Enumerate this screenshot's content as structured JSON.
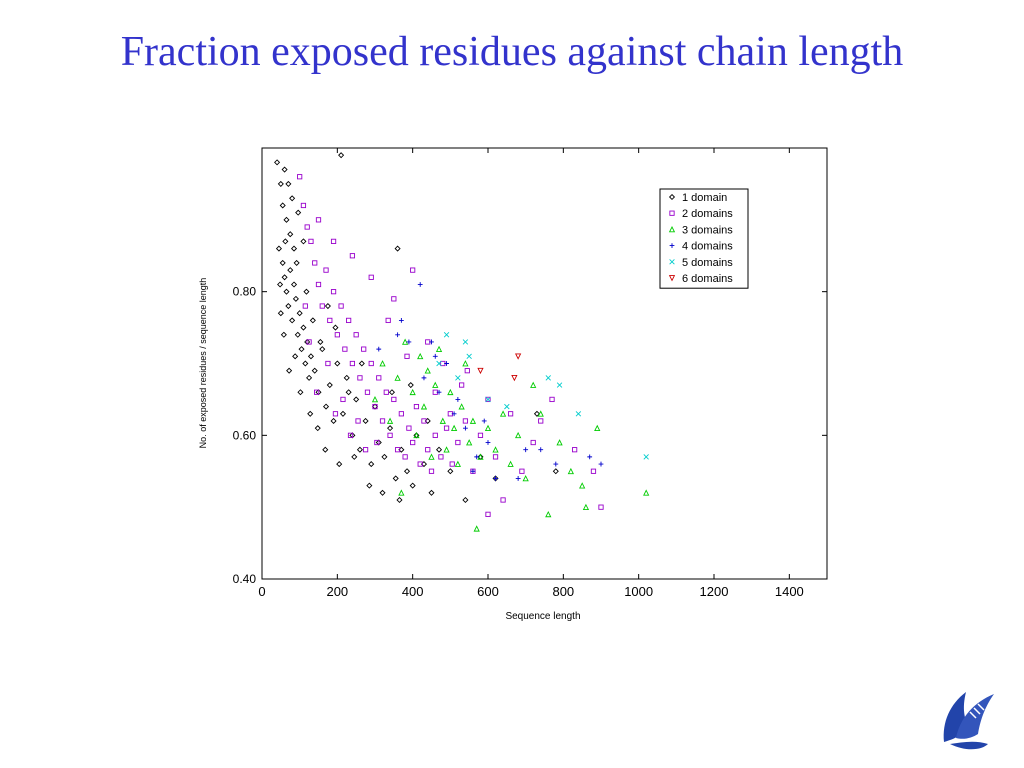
{
  "slide": {
    "title": "Fraction exposed residues against chain length"
  },
  "chart_data": {
    "type": "scatter",
    "xlabel": "Sequence length",
    "ylabel": "No. of exposed residues / sequence length",
    "xlim": [
      0,
      1500
    ],
    "ylim": [
      0.4,
      1.0
    ],
    "xticks": [
      0,
      200,
      400,
      600,
      800,
      1000,
      1200,
      1400
    ],
    "xtick_labels": [
      "0",
      "200",
      "400",
      "600",
      "800",
      "1000",
      "1200",
      "1400"
    ],
    "yticks": [
      0.4,
      0.6,
      0.8
    ],
    "ytick_labels": [
      "0.40",
      "0.60",
      "0.80"
    ],
    "legend_position": "top-right",
    "series": [
      {
        "name": "1 domain",
        "marker": "diamond",
        "color": "#000000",
        "points": [
          [
            40,
            0.98
          ],
          [
            50,
            0.95
          ],
          [
            55,
            0.92
          ],
          [
            60,
            0.97
          ],
          [
            65,
            0.9
          ],
          [
            70,
            0.95
          ],
          [
            75,
            0.88
          ],
          [
            80,
            0.93
          ],
          [
            45,
            0.86
          ],
          [
            55,
            0.84
          ],
          [
            60,
            0.82
          ],
          [
            65,
            0.8
          ],
          [
            70,
            0.78
          ],
          [
            75,
            0.83
          ],
          [
            80,
            0.76
          ],
          [
            85,
            0.81
          ],
          [
            90,
            0.79
          ],
          [
            95,
            0.74
          ],
          [
            100,
            0.77
          ],
          [
            105,
            0.72
          ],
          [
            110,
            0.75
          ],
          [
            115,
            0.7
          ],
          [
            120,
            0.73
          ],
          [
            125,
            0.68
          ],
          [
            130,
            0.71
          ],
          [
            140,
            0.69
          ],
          [
            150,
            0.66
          ],
          [
            160,
            0.72
          ],
          [
            170,
            0.64
          ],
          [
            180,
            0.67
          ],
          [
            190,
            0.62
          ],
          [
            200,
            0.7
          ],
          [
            210,
            0.99
          ],
          [
            215,
            0.63
          ],
          [
            225,
            0.68
          ],
          [
            240,
            0.6
          ],
          [
            250,
            0.65
          ],
          [
            260,
            0.58
          ],
          [
            275,
            0.62
          ],
          [
            290,
            0.56
          ],
          [
            300,
            0.64
          ],
          [
            310,
            0.59
          ],
          [
            325,
            0.57
          ],
          [
            340,
            0.61
          ],
          [
            355,
            0.54
          ],
          [
            360,
            0.86
          ],
          [
            365,
            0.51
          ],
          [
            370,
            0.58
          ],
          [
            385,
            0.55
          ],
          [
            400,
            0.53
          ],
          [
            410,
            0.6
          ],
          [
            430,
            0.56
          ],
          [
            450,
            0.52
          ],
          [
            470,
            0.58
          ],
          [
            500,
            0.55
          ],
          [
            540,
            0.51
          ],
          [
            580,
            0.57
          ],
          [
            620,
            0.54
          ],
          [
            730,
            0.63
          ],
          [
            780,
            0.55
          ],
          [
            96,
            0.91
          ],
          [
            58,
            0.74
          ],
          [
            72,
            0.69
          ],
          [
            88,
            0.71
          ],
          [
            102,
            0.66
          ],
          [
            118,
            0.8
          ],
          [
            135,
            0.76
          ],
          [
            155,
            0.73
          ],
          [
            175,
            0.78
          ],
          [
            195,
            0.75
          ],
          [
            230,
            0.66
          ],
          [
            265,
            0.7
          ],
          [
            50,
            0.77
          ],
          [
            62,
            0.87
          ],
          [
            48,
            0.81
          ],
          [
            85,
            0.86
          ],
          [
            92,
            0.84
          ],
          [
            110,
            0.87
          ],
          [
            128,
            0.63
          ],
          [
            148,
            0.61
          ],
          [
            168,
            0.58
          ],
          [
            205,
            0.56
          ],
          [
            245,
            0.57
          ],
          [
            285,
            0.53
          ],
          [
            320,
            0.52
          ],
          [
            345,
            0.66
          ],
          [
            395,
            0.67
          ],
          [
            440,
            0.62
          ]
        ]
      },
      {
        "name": "2 domains",
        "marker": "square",
        "color": "#9900cc",
        "points": [
          [
            100,
            0.96
          ],
          [
            110,
            0.92
          ],
          [
            120,
            0.89
          ],
          [
            130,
            0.87
          ],
          [
            140,
            0.84
          ],
          [
            150,
            0.81
          ],
          [
            160,
            0.78
          ],
          [
            170,
            0.83
          ],
          [
            180,
            0.76
          ],
          [
            190,
            0.8
          ],
          [
            200,
            0.74
          ],
          [
            210,
            0.78
          ],
          [
            220,
            0.72
          ],
          [
            230,
            0.76
          ],
          [
            240,
            0.7
          ],
          [
            250,
            0.74
          ],
          [
            260,
            0.68
          ],
          [
            270,
            0.72
          ],
          [
            280,
            0.66
          ],
          [
            290,
            0.7
          ],
          [
            300,
            0.64
          ],
          [
            310,
            0.68
          ],
          [
            320,
            0.62
          ],
          [
            330,
            0.66
          ],
          [
            340,
            0.6
          ],
          [
            350,
            0.65
          ],
          [
            360,
            0.58
          ],
          [
            370,
            0.63
          ],
          [
            380,
            0.57
          ],
          [
            390,
            0.61
          ],
          [
            400,
            0.59
          ],
          [
            410,
            0.64
          ],
          [
            420,
            0.56
          ],
          [
            430,
            0.62
          ],
          [
            440,
            0.58
          ],
          [
            450,
            0.55
          ],
          [
            460,
            0.6
          ],
          [
            475,
            0.57
          ],
          [
            490,
            0.61
          ],
          [
            505,
            0.56
          ],
          [
            520,
            0.59
          ],
          [
            540,
            0.62
          ],
          [
            560,
            0.55
          ],
          [
            580,
            0.6
          ],
          [
            600,
            0.49
          ],
          [
            620,
            0.57
          ],
          [
            640,
            0.51
          ],
          [
            660,
            0.63
          ],
          [
            690,
            0.55
          ],
          [
            720,
            0.59
          ],
          [
            740,
            0.62
          ],
          [
            770,
            0.65
          ],
          [
            830,
            0.58
          ],
          [
            880,
            0.55
          ],
          [
            900,
            0.5
          ],
          [
            150,
            0.9
          ],
          [
            190,
            0.87
          ],
          [
            240,
            0.85
          ],
          [
            290,
            0.82
          ],
          [
            350,
            0.79
          ],
          [
            400,
            0.83
          ],
          [
            440,
            0.73
          ],
          [
            480,
            0.7
          ],
          [
            530,
            0.67
          ],
          [
            125,
            0.73
          ],
          [
            175,
            0.7
          ],
          [
            215,
            0.65
          ],
          [
            255,
            0.62
          ],
          [
            305,
            0.59
          ],
          [
            335,
            0.76
          ],
          [
            385,
            0.71
          ],
          [
            460,
            0.66
          ],
          [
            500,
            0.63
          ],
          [
            545,
            0.69
          ],
          [
            600,
            0.65
          ],
          [
            145,
            0.66
          ],
          [
            195,
            0.63
          ],
          [
            235,
            0.6
          ],
          [
            275,
            0.58
          ],
          [
            115,
            0.78
          ]
        ]
      },
      {
        "name": "3 domains",
        "marker": "triangle-up",
        "color": "#00cc00",
        "points": [
          [
            300,
            0.65
          ],
          [
            320,
            0.7
          ],
          [
            340,
            0.62
          ],
          [
            360,
            0.68
          ],
          [
            370,
            0.52
          ],
          [
            380,
            0.73
          ],
          [
            400,
            0.66
          ],
          [
            410,
            0.6
          ],
          [
            420,
            0.71
          ],
          [
            430,
            0.64
          ],
          [
            440,
            0.69
          ],
          [
            450,
            0.57
          ],
          [
            460,
            0.67
          ],
          [
            470,
            0.72
          ],
          [
            480,
            0.62
          ],
          [
            490,
            0.58
          ],
          [
            500,
            0.66
          ],
          [
            510,
            0.61
          ],
          [
            520,
            0.56
          ],
          [
            530,
            0.64
          ],
          [
            540,
            0.7
          ],
          [
            550,
            0.59
          ],
          [
            560,
            0.62
          ],
          [
            570,
            0.47
          ],
          [
            580,
            0.57
          ],
          [
            600,
            0.61
          ],
          [
            620,
            0.58
          ],
          [
            640,
            0.63
          ],
          [
            660,
            0.56
          ],
          [
            680,
            0.6
          ],
          [
            700,
            0.54
          ],
          [
            720,
            0.67
          ],
          [
            740,
            0.63
          ],
          [
            760,
            0.49
          ],
          [
            790,
            0.59
          ],
          [
            820,
            0.55
          ],
          [
            850,
            0.53
          ],
          [
            860,
            0.5
          ],
          [
            890,
            0.61
          ],
          [
            1020,
            0.52
          ]
        ]
      },
      {
        "name": "4 domains",
        "marker": "plus",
        "color": "#0000cc",
        "points": [
          [
            310,
            0.72
          ],
          [
            360,
            0.74
          ],
          [
            370,
            0.76
          ],
          [
            390,
            0.73
          ],
          [
            420,
            0.81
          ],
          [
            450,
            0.73
          ],
          [
            460,
            0.71
          ],
          [
            470,
            0.66
          ],
          [
            490,
            0.7
          ],
          [
            510,
            0.63
          ],
          [
            520,
            0.65
          ],
          [
            540,
            0.61
          ],
          [
            560,
            0.55
          ],
          [
            570,
            0.57
          ],
          [
            590,
            0.62
          ],
          [
            600,
            0.59
          ],
          [
            620,
            0.54
          ],
          [
            680,
            0.54
          ],
          [
            700,
            0.58
          ],
          [
            740,
            0.58
          ],
          [
            780,
            0.56
          ],
          [
            870,
            0.57
          ],
          [
            900,
            0.56
          ],
          [
            430,
            0.68
          ]
        ]
      },
      {
        "name": "5 domains",
        "marker": "cross",
        "color": "#00cccc",
        "points": [
          [
            490,
            0.74
          ],
          [
            540,
            0.73
          ],
          [
            550,
            0.71
          ],
          [
            600,
            0.65
          ],
          [
            650,
            0.64
          ],
          [
            760,
            0.68
          ],
          [
            790,
            0.67
          ],
          [
            840,
            0.63
          ],
          [
            1020,
            0.57
          ],
          [
            470,
            0.7
          ],
          [
            520,
            0.68
          ]
        ]
      },
      {
        "name": "6 domains",
        "marker": "triangle-down",
        "color": "#cc0000",
        "points": [
          [
            580,
            0.69
          ],
          [
            670,
            0.68
          ],
          [
            680,
            0.71
          ]
        ]
      }
    ]
  }
}
